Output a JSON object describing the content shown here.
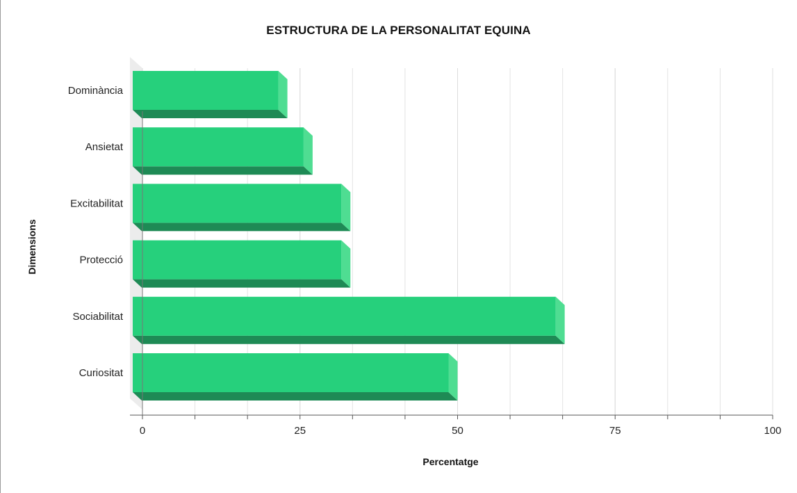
{
  "chart_data": {
    "type": "bar",
    "orientation": "horizontal",
    "title": "ESTRUCTURA DE LA PERSONALITAT EQUINA",
    "xlabel": "Percentatge",
    "ylabel": "Dimensions",
    "categories": [
      "Dominància",
      "Ansietat",
      "Excitabilitat",
      "Protecció",
      "Sociabilitat",
      "Curiositat"
    ],
    "values": [
      23,
      27,
      33,
      33,
      67,
      50
    ],
    "xlim": [
      0,
      100
    ],
    "xticks": [
      "0",
      "25",
      "50",
      "75",
      "100"
    ],
    "grid": true,
    "legend": "none",
    "style": "3d",
    "colors": {
      "bar_front": "#26d07c",
      "bar_side": "#4fdd92",
      "bar_bottom": "#1e8a55",
      "grid": "#e3e3e3",
      "axis": "#555555"
    }
  }
}
